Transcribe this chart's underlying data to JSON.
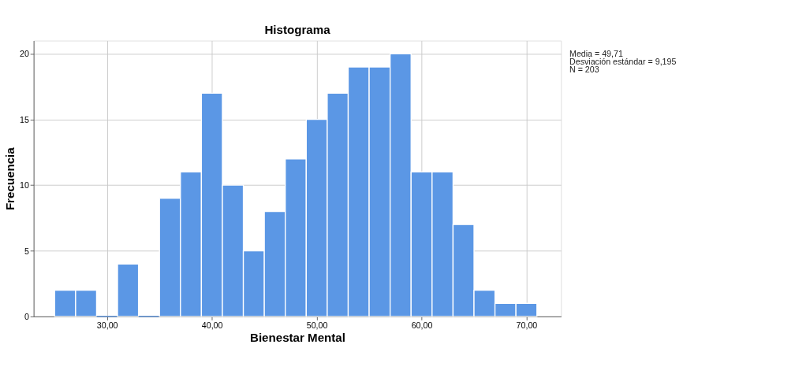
{
  "chart_data": {
    "type": "histogram",
    "title": "Histograma",
    "xlabel": "Bienestar Mental",
    "ylabel": "Frecuencia",
    "bins": [
      25,
      27,
      29,
      31,
      33,
      35,
      37,
      39,
      41,
      43,
      45,
      47,
      49,
      51,
      53,
      55,
      57,
      59,
      61,
      63,
      65,
      67,
      69,
      71
    ],
    "values": [
      2,
      2,
      0,
      4,
      0,
      9,
      11,
      17,
      10,
      5,
      8,
      12,
      15,
      17,
      19,
      19,
      20,
      11,
      11,
      7,
      2,
      1,
      1
    ],
    "color": "#5b97e5",
    "xlim": [
      23,
      73.3
    ],
    "xticks": [
      {
        "value": 30,
        "label": "30,00"
      },
      {
        "value": 40,
        "label": "40,00"
      },
      {
        "value": 50,
        "label": "50,00"
      },
      {
        "value": 60,
        "label": "60,00"
      },
      {
        "value": 70,
        "label": "70,00"
      }
    ],
    "ylim": [
      0,
      21
    ],
    "yticks": [
      0,
      5,
      10,
      15,
      20
    ],
    "grid": true,
    "annotations": [
      "Media = 49,71",
      "Desviación estándar = 9,195",
      "N = 203"
    ]
  }
}
